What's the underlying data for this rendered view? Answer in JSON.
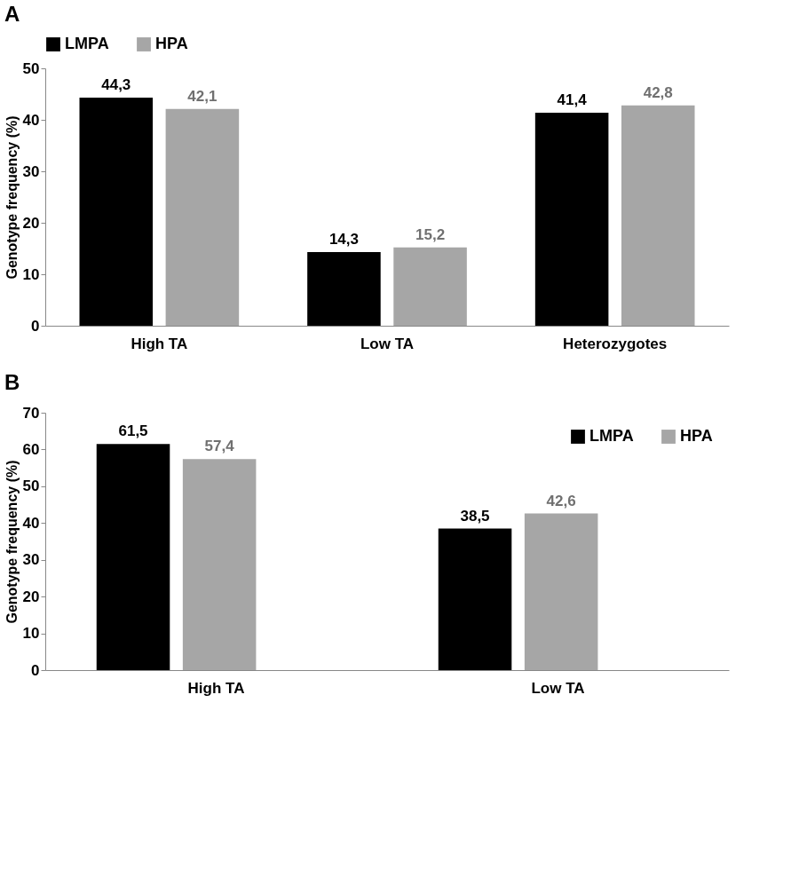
{
  "chart_data": [
    {
      "type": "bar",
      "title": "A",
      "ylabel": "Genotype frequency (%)",
      "categories": [
        "High TA",
        "Low TA",
        "Heterozygotes"
      ],
      "ylim": [
        0,
        50
      ],
      "yticks": [
        0,
        10,
        20,
        30,
        40,
        50
      ],
      "legend": "top",
      "series": [
        {
          "name": "LMPA",
          "color": "#000000",
          "values": [
            44.3,
            14.3,
            41.4
          ],
          "value_labels": [
            "44,3",
            "14,3",
            "41,4"
          ]
        },
        {
          "name": "HPA",
          "color": "#a6a6a6",
          "values": [
            42.1,
            15.2,
            42.8
          ],
          "value_labels": [
            "42,1",
            "15,2",
            "42,8"
          ]
        }
      ]
    },
    {
      "type": "bar",
      "title": "B",
      "ylabel": "Genotype frequency (%)",
      "categories": [
        "High TA",
        "Low TA"
      ],
      "ylim": [
        0,
        70
      ],
      "yticks": [
        0,
        10,
        20,
        30,
        40,
        50,
        60,
        70
      ],
      "legend": "top right",
      "series": [
        {
          "name": "LMPA",
          "color": "#000000",
          "values": [
            61.5,
            38.5
          ],
          "value_labels": [
            "61,5",
            "38,5"
          ]
        },
        {
          "name": "HPA",
          "color": "#a6a6a6",
          "values": [
            57.4,
            42.6
          ],
          "value_labels": [
            "57,4",
            "42,6"
          ]
        }
      ]
    }
  ]
}
